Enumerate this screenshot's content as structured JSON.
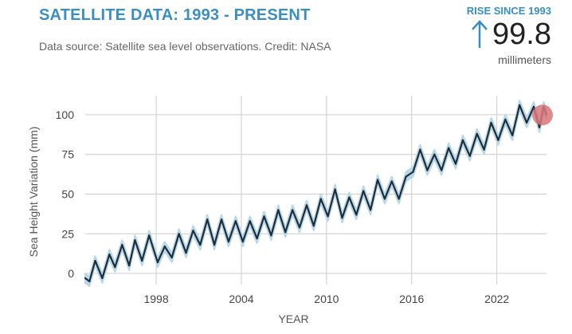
{
  "header": {
    "title": "SATELLITE DATA: 1993 - PRESENT",
    "source": "Data source: Satellite sea level observations. Credit: NASA"
  },
  "rise": {
    "label": "RISE SINCE 1993",
    "value": "99.8",
    "unit": "millimeters"
  },
  "colors": {
    "accent": "#3b8ec2",
    "line": "#1f2d38",
    "band": "#b7d8ea",
    "marker": "#d9777a",
    "grid": "#cccccc"
  },
  "chart_data": {
    "type": "line",
    "title": "",
    "xlabel": "YEAR",
    "ylabel": "Sea Height Variation (mm)",
    "xlim": [
      1993.0,
      2025.5
    ],
    "ylim": [
      -7,
      112
    ],
    "x_ticks": [
      1998,
      2004,
      2010,
      2016,
      2022
    ],
    "x_tick_labels": [
      "1998",
      "2004",
      "2010",
      "2016",
      "2022"
    ],
    "y_ticks": [
      0,
      25,
      50,
      75,
      100
    ],
    "y_tick_labels": [
      "0",
      "25",
      "50",
      "75",
      "100"
    ],
    "grid": true,
    "series": [
      {
        "name": "Sea height variation",
        "points": [
          [
            1993.0,
            -3
          ],
          [
            1993.3,
            -5
          ],
          [
            1993.7,
            8
          ],
          [
            1994.2,
            -3
          ],
          [
            1994.7,
            12
          ],
          [
            1995.1,
            4
          ],
          [
            1995.6,
            18
          ],
          [
            1996.1,
            5
          ],
          [
            1996.5,
            21
          ],
          [
            1997.0,
            8
          ],
          [
            1997.5,
            24
          ],
          [
            1998.1,
            7
          ],
          [
            1998.6,
            17
          ],
          [
            1999.1,
            10
          ],
          [
            1999.6,
            25
          ],
          [
            2000.1,
            13
          ],
          [
            2000.6,
            27
          ],
          [
            2001.1,
            18
          ],
          [
            2001.6,
            34
          ],
          [
            2002.1,
            18
          ],
          [
            2002.6,
            34
          ],
          [
            2003.1,
            20
          ],
          [
            2003.6,
            33
          ],
          [
            2004.1,
            20
          ],
          [
            2004.6,
            33
          ],
          [
            2005.1,
            22
          ],
          [
            2005.6,
            36
          ],
          [
            2006.1,
            24
          ],
          [
            2006.6,
            40
          ],
          [
            2007.1,
            26
          ],
          [
            2007.6,
            40
          ],
          [
            2008.1,
            29
          ],
          [
            2008.6,
            43
          ],
          [
            2009.1,
            30
          ],
          [
            2009.6,
            47
          ],
          [
            2010.1,
            36
          ],
          [
            2010.6,
            53
          ],
          [
            2011.1,
            35
          ],
          [
            2011.6,
            48
          ],
          [
            2012.1,
            37
          ],
          [
            2012.6,
            52
          ],
          [
            2013.1,
            40
          ],
          [
            2013.6,
            59
          ],
          [
            2014.1,
            47
          ],
          [
            2014.6,
            58
          ],
          [
            2015.1,
            47
          ],
          [
            2015.6,
            61
          ],
          [
            2016.1,
            64
          ],
          [
            2016.6,
            78
          ],
          [
            2017.1,
            65
          ],
          [
            2017.6,
            75
          ],
          [
            2018.1,
            65
          ],
          [
            2018.6,
            79
          ],
          [
            2019.1,
            69
          ],
          [
            2019.6,
            84
          ],
          [
            2020.1,
            74
          ],
          [
            2020.6,
            88
          ],
          [
            2021.1,
            78
          ],
          [
            2021.6,
            95
          ],
          [
            2022.1,
            84
          ],
          [
            2022.6,
            97
          ],
          [
            2023.1,
            87
          ],
          [
            2023.6,
            106
          ],
          [
            2024.1,
            95
          ],
          [
            2024.6,
            105
          ],
          [
            2025.0,
            92
          ],
          [
            2025.3,
            105
          ],
          [
            2025.5,
            100
          ]
        ]
      }
    ],
    "uncertainty_band_mm": 3,
    "latest_point": {
      "x": 2025.5,
      "y": 99.8
    }
  }
}
